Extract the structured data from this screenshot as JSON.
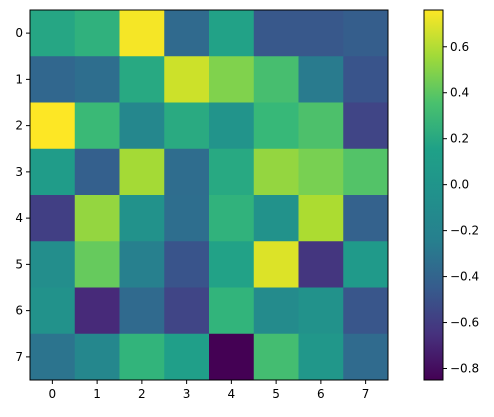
{
  "chart_data": {
    "type": "heatmap",
    "title": "",
    "xlabel": "",
    "ylabel": "",
    "colormap": "viridis",
    "x_ticks": [
      "0",
      "1",
      "2",
      "3",
      "4",
      "5",
      "6",
      "7"
    ],
    "y_ticks": [
      "0",
      "1",
      "2",
      "3",
      "4",
      "5",
      "6",
      "7"
    ],
    "values": [
      [
        0.1,
        0.18,
        0.74,
        -0.3,
        0.07,
        -0.41,
        -0.41,
        -0.37
      ],
      [
        -0.32,
        -0.27,
        0.12,
        0.64,
        0.45,
        0.28,
        -0.18,
        -0.43
      ],
      [
        0.76,
        0.24,
        -0.1,
        0.13,
        -0.02,
        0.23,
        0.3,
        -0.52
      ],
      [
        0.03,
        -0.36,
        0.54,
        -0.28,
        0.12,
        0.5,
        0.43,
        0.32
      ],
      [
        -0.55,
        0.5,
        -0.03,
        -0.27,
        0.19,
        -0.03,
        0.56,
        -0.35
      ],
      [
        -0.06,
        0.38,
        -0.15,
        -0.43,
        0.07,
        0.68,
        -0.6,
        0.02
      ],
      [
        -0.03,
        -0.66,
        -0.3,
        -0.52,
        0.2,
        -0.08,
        -0.03,
        -0.42
      ],
      [
        -0.23,
        -0.1,
        0.2,
        0.05,
        -0.85,
        0.27,
        0.0,
        -0.29
      ]
    ],
    "colorbar": {
      "min": -0.85,
      "max": 0.76,
      "ticks": [
        -0.8,
        -0.6,
        -0.4,
        -0.2,
        0.0,
        0.2,
        0.4,
        0.6
      ],
      "tick_labels": [
        "−0.8",
        "−0.6",
        "−0.4",
        "−0.2",
        "0.0",
        "0.2",
        "0.4",
        "0.6"
      ]
    }
  }
}
